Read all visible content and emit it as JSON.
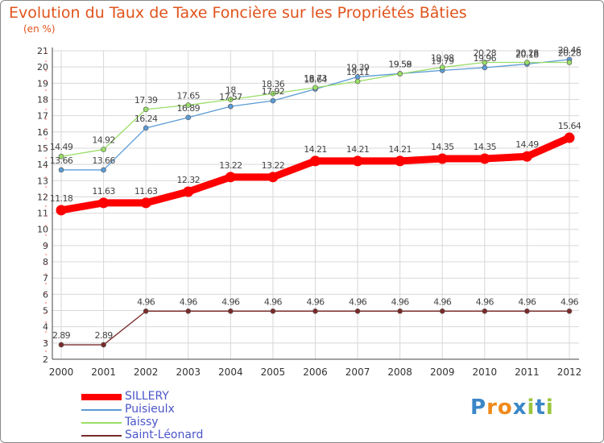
{
  "title": "Evolution du Taux de Taxe Foncière sur les Propriétés Bâties",
  "unit_label": "(en %)",
  "logo": {
    "text": "Proxiti",
    "colors": [
      "#3a87c8",
      "#f08a1c",
      "#f08a1c",
      "#3a87c8",
      "#9bc53d",
      "#3a87c8",
      "#9bc53d"
    ]
  },
  "chart_data": {
    "type": "line",
    "x": [
      "2000",
      "2001",
      "2002",
      "2003",
      "2004",
      "2005",
      "2006",
      "2007",
      "2008",
      "2009",
      "2010",
      "2011",
      "2012"
    ],
    "ylim": [
      2,
      21
    ],
    "yticks": [
      2,
      3,
      4,
      5,
      6,
      7,
      8,
      9,
      10,
      11,
      12,
      13,
      14,
      15,
      16,
      17,
      18,
      19,
      20,
      21
    ],
    "grid": true,
    "legend_position": "bottom-left",
    "series": [
      {
        "name": "SILLERY",
        "color": "#ff0000",
        "values": [
          11.18,
          11.63,
          11.63,
          12.32,
          13.22,
          13.22,
          14.21,
          14.21,
          14.21,
          14.35,
          14.35,
          14.49,
          15.64
        ],
        "labels": [
          "11.18",
          "11.63",
          "11.63",
          "12.32",
          "13.22",
          "13.22",
          "14.21",
          "14.21",
          "14.21",
          "14.35",
          "14.35",
          "14.49",
          "15.64"
        ]
      },
      {
        "name": "Puisieulx",
        "color": "#5b9bd5",
        "values": [
          13.66,
          13.66,
          16.24,
          16.89,
          17.57,
          17.92,
          18.64,
          19.39,
          19.59,
          19.79,
          19.96,
          20.18,
          20.46
        ],
        "labels": [
          "13.66",
          "13.66",
          "16.24",
          "16.89",
          "17.57",
          "17.92",
          "18.64",
          "19.39",
          "19.59",
          "19.79",
          "19.96",
          "20.18",
          "20.46"
        ]
      },
      {
        "name": "Taissy",
        "color": "#99dd66",
        "values": [
          14.49,
          14.92,
          17.39,
          17.65,
          18.0,
          18.36,
          18.73,
          19.11,
          19.58,
          19.98,
          20.28,
          20.28,
          20.28
        ],
        "labels": [
          "14.49",
          "14.92",
          "17.39",
          "17.65",
          "18",
          "18.36",
          "18.73",
          "19.11",
          "19.58",
          "19.98",
          "20.28",
          "20.28",
          "20.28"
        ]
      },
      {
        "name": "Saint-Léonard",
        "color": "#7b2a2a",
        "values": [
          2.89,
          2.89,
          4.96,
          4.96,
          4.96,
          4.96,
          4.96,
          4.96,
          4.96,
          4.96,
          4.96,
          4.96,
          4.96
        ],
        "labels": [
          "2.89",
          "2.89",
          "4.96",
          "4.96",
          "4.96",
          "4.96",
          "4.96",
          "4.96",
          "4.96",
          "4.96",
          "4.96",
          "4.96",
          "4.96"
        ]
      }
    ]
  }
}
